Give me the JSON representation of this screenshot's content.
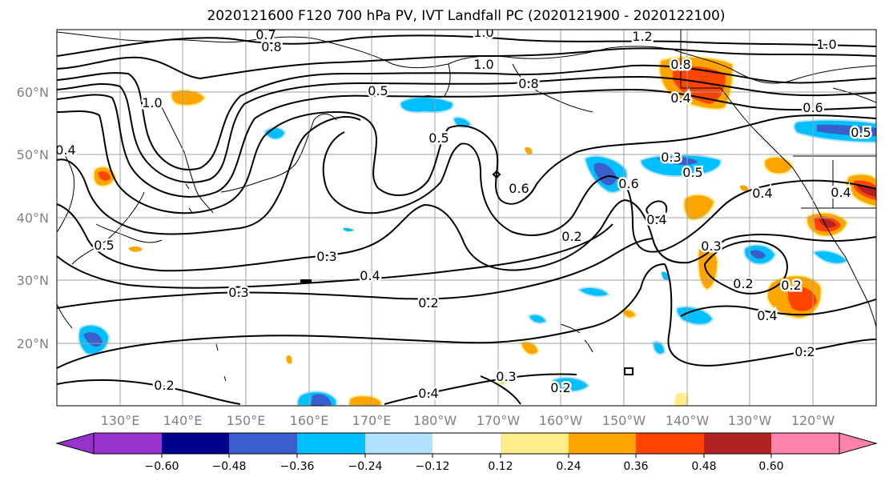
{
  "figure": {
    "title": "2020121600 F120 700 hPa PV, IVT Landfall PC (2020121900 - 2020122100)"
  },
  "map": {
    "lon_ticks": [
      "130°E",
      "140°E",
      "150°E",
      "160°E",
      "170°E",
      "180°W",
      "170°W",
      "160°W",
      "150°W",
      "140°W",
      "130°W",
      "120°W"
    ],
    "lat_ticks": [
      "60°N",
      "50°N",
      "40°N",
      "30°N",
      "20°N"
    ],
    "extent": {
      "lon_min_east": 120,
      "lon_max_east": 250,
      "lat_min": 10,
      "lat_max": 70
    },
    "contour_labels": [
      "0.7",
      "0.8",
      "1.0",
      "1.2",
      "1.0",
      "0.8",
      "1.0",
      "0.5",
      "1.0",
      "0.8",
      "0.4",
      "0.6",
      "0.5",
      "0.4",
      "0.5",
      "0.5",
      "0.6",
      "0.6",
      "0.5",
      "0.4",
      "0.4",
      "0.2",
      "0.3",
      "0.3",
      "0.4",
      "0.2",
      "0.3",
      "0.2",
      "0.4",
      "0.2",
      "0.4",
      "0.2",
      "0.3",
      "0.2",
      "0.3",
      "0.4",
      "0.2"
    ]
  },
  "colorbar": {
    "ticks": [
      "−0.60",
      "−0.48",
      "−0.36",
      "−0.24",
      "−0.12",
      "0.12",
      "0.24",
      "0.36",
      "0.48",
      "0.60"
    ],
    "colors": [
      "#9932cc",
      "#00008b",
      "#3a5fcd",
      "#00bfff",
      "#b0e2ff",
      "#ffffff",
      "#ffec8b",
      "#ffa500",
      "#ff4500",
      "#b22222",
      "#ff82ab"
    ]
  },
  "colors": {
    "contour": "#000000",
    "grid": "#a0a0a0",
    "coast": "#000000"
  }
}
